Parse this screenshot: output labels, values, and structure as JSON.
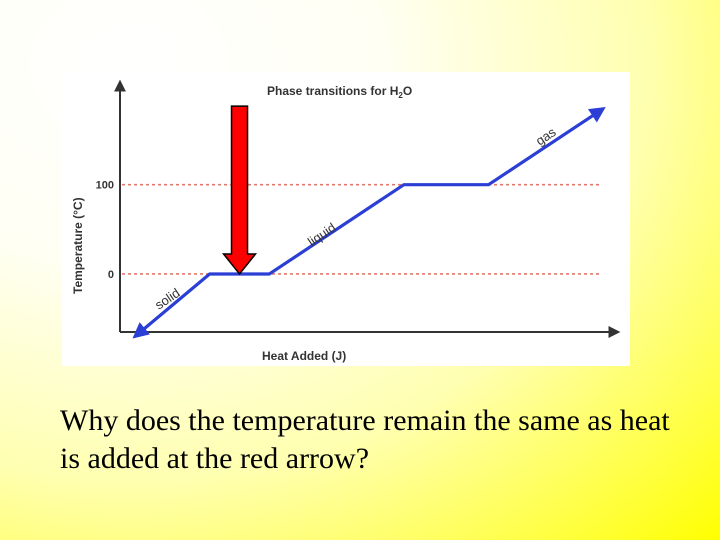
{
  "chart_data": {
    "type": "line",
    "title": "Phase transitions for H2O",
    "title_main": "Phase transitions for H",
    "title_sub": "2",
    "title_end": "O",
    "xlabel": "Heat Added (J)",
    "ylabel": "Temperature (°C)",
    "yticks": [
      0,
      100
    ],
    "ylim": [
      -65,
      215
    ],
    "xlim": [
      0,
      100
    ],
    "reference_lines": [
      0,
      100
    ],
    "series": [
      {
        "x": [
          3,
          18,
          30,
          57,
          74,
          97
        ],
        "y": [
          -70,
          0,
          0,
          100,
          100,
          185
        ]
      }
    ],
    "phase_labels": [
      {
        "text": "solid",
        "x": 10,
        "y": -32,
        "angle": -34
      },
      {
        "text": "liquid",
        "x": 41,
        "y": 40,
        "angle": -34
      },
      {
        "text": "gas",
        "x": 86,
        "y": 150,
        "angle": -34
      }
    ],
    "marker": {
      "type": "red-arrow",
      "x": 24,
      "y_from": 188,
      "y_to": 0
    },
    "colors": {
      "line": "#2b3fd6",
      "reference": "#e07a6a",
      "axis": "#333333",
      "arrow": "#ff0000"
    }
  },
  "question": "Why does the temperature remain the same as heat is added at the red arrow?"
}
